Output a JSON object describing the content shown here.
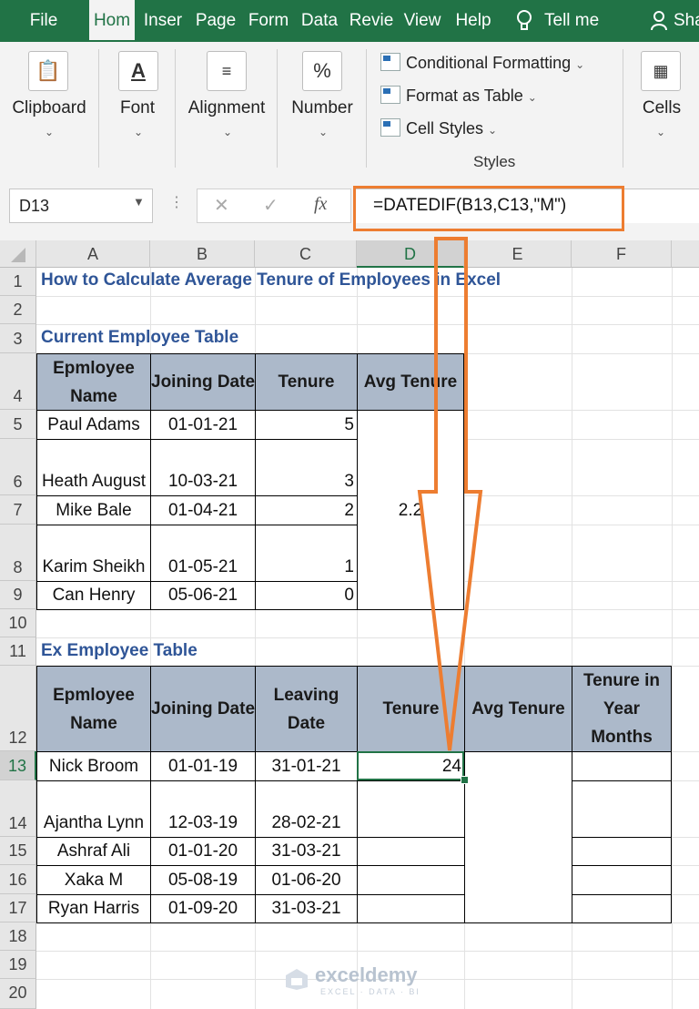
{
  "ribbon": {
    "tabs": [
      {
        "label": "File",
        "active": false
      },
      {
        "label": "Hom",
        "active": true
      },
      {
        "label": "Inser",
        "active": false
      },
      {
        "label": "Page",
        "active": false
      },
      {
        "label": "Form",
        "active": false
      },
      {
        "label": "Data",
        "active": false
      },
      {
        "label": "Revie",
        "active": false
      },
      {
        "label": "View",
        "active": false
      },
      {
        "label": "Help",
        "active": false
      },
      {
        "label": "Tell me",
        "active": false
      },
      {
        "label": "Sha",
        "active": false
      }
    ],
    "groups": {
      "clipboard": "Clipboard",
      "font": "Font",
      "alignment": "Alignment",
      "number": "Number",
      "cells": "Cells"
    },
    "styles": {
      "conditional_formatting": "Conditional Formatting",
      "format_as_table": "Format as Table",
      "cell_styles": "Cell Styles",
      "group_label": "Styles"
    },
    "icons": {
      "font": "A",
      "number": "%"
    }
  },
  "formula_bar": {
    "name_box": "D13",
    "formula": "=DATEDIF(B13,C13,\"M\")",
    "fx": "fx"
  },
  "columns": [
    "A",
    "B",
    "C",
    "D",
    "E",
    "F"
  ],
  "rows": [
    "1",
    "2",
    "3",
    "4",
    "5",
    "6",
    "7",
    "8",
    "9",
    "10",
    "11",
    "12",
    "13",
    "14",
    "15",
    "16",
    "17",
    "18",
    "19",
    "20"
  ],
  "sheet": {
    "title": "How to Calculate Average Tenure of Employees in Excel",
    "current_title": "Current Employee Table",
    "current_headers": [
      "Epmloyee Name",
      "Joining Date",
      "Tenure",
      "Avg Tenure"
    ],
    "current_rows": [
      {
        "name": "Paul Adams",
        "joining": "01-01-21",
        "tenure": "5"
      },
      {
        "name": "Heath August",
        "joining": "10-03-21",
        "tenure": "3"
      },
      {
        "name": "Mike Bale",
        "joining": "01-04-21",
        "tenure": "2"
      },
      {
        "name": "Karim Sheikh",
        "joining": "01-05-21",
        "tenure": "1"
      },
      {
        "name": "Can Henry",
        "joining": "05-06-21",
        "tenure": "0"
      }
    ],
    "current_avg": "2.2",
    "ex_title": "Ex Employee Table",
    "ex_headers": [
      "Epmloyee Name",
      "Joining Date",
      "Leaving Date",
      "Tenure",
      "Avg Tenure",
      "Tenure in Year Months"
    ],
    "ex_rows": [
      {
        "name": "Nick Broom",
        "joining": "01-01-19",
        "leaving": "31-01-21",
        "tenure": "24"
      },
      {
        "name": "Ajantha Lynn",
        "joining": "12-03-19",
        "leaving": "28-02-21",
        "tenure": ""
      },
      {
        "name": "Ashraf Ali",
        "joining": "01-01-20",
        "leaving": "31-03-21",
        "tenure": ""
      },
      {
        "name": "Xaka M",
        "joining": "05-08-19",
        "leaving": "01-06-20",
        "tenure": ""
      },
      {
        "name": "Ryan Harris",
        "joining": "01-09-20",
        "leaving": "31-03-21",
        "tenure": ""
      }
    ]
  },
  "watermark": {
    "brand": "exceldemy",
    "tagline": "EXCEL · DATA · BI"
  },
  "colors": {
    "excel_green": "#217346",
    "header_fill": "#acb9ca",
    "title_blue": "#2f5597",
    "highlight_orange": "#ed7d31"
  }
}
